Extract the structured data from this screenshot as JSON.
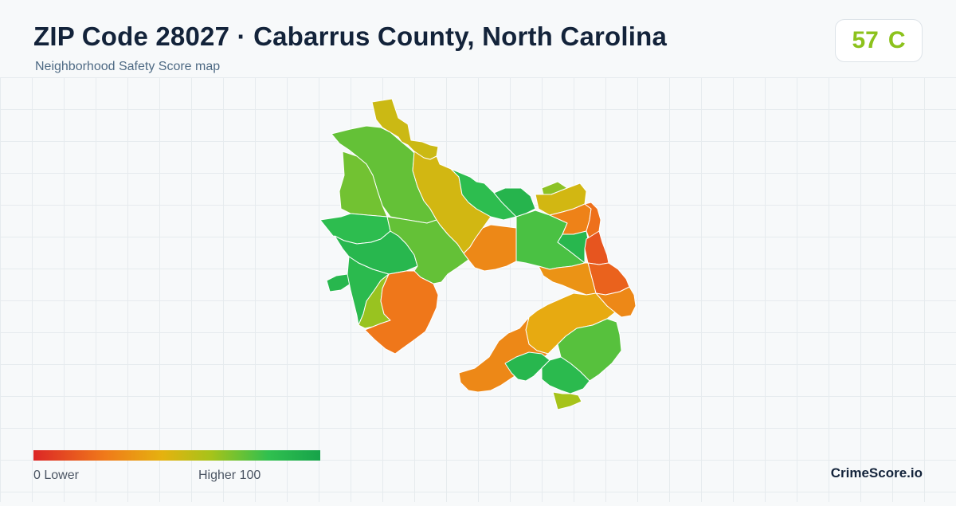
{
  "header": {
    "title": "ZIP Code 28027 · Cabarrus County, North Carolina",
    "subtitle": "Neighborhood Safety Score map"
  },
  "score": {
    "value": "57",
    "grade": "C",
    "color": "#8cc21c"
  },
  "legend": {
    "min_label": "0  Lower",
    "max_label": "Higher  100"
  },
  "brand": "CrimeScore.io",
  "map": {
    "regions": [
      {
        "score": 52
      },
      {
        "score": 72
      },
      {
        "score": 70
      },
      {
        "score": 82
      },
      {
        "score": 86
      },
      {
        "score": 50
      },
      {
        "score": 30
      },
      {
        "score": 72
      },
      {
        "score": 86
      },
      {
        "score": 84
      },
      {
        "score": 64
      },
      {
        "score": 24
      },
      {
        "score": 82
      },
      {
        "score": 88
      },
      {
        "score": 66
      },
      {
        "score": 50
      },
      {
        "score": 76
      },
      {
        "score": 28
      },
      {
        "score": 86
      },
      {
        "score": 22
      },
      {
        "score": 14
      },
      {
        "score": 18
      },
      {
        "score": 34
      },
      {
        "score": 30
      },
      {
        "score": 42
      },
      {
        "score": 74
      },
      {
        "score": 30
      },
      {
        "score": 86
      },
      {
        "score": 84
      },
      {
        "score": 62
      }
    ]
  }
}
